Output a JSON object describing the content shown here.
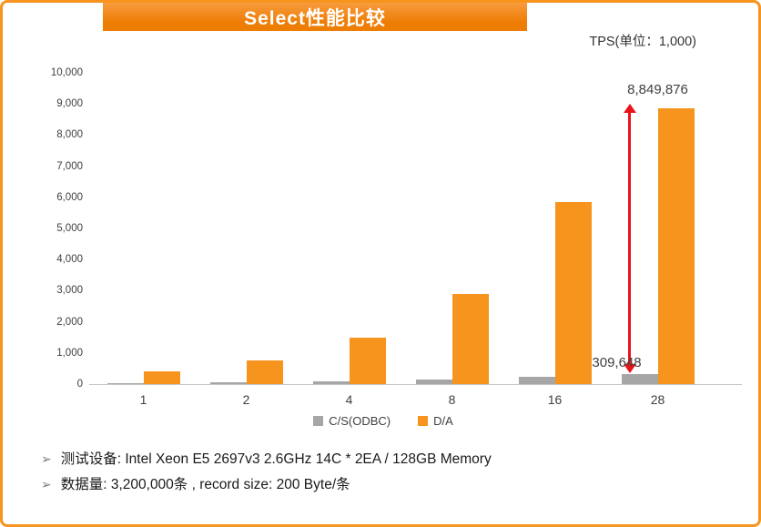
{
  "header": {
    "title": "Select性能比较"
  },
  "chart": {
    "unit_label": "TPS(单位：1,000)"
  },
  "colors": {
    "accent_orange": "#f7941d",
    "banner_orange": "#ee7d04",
    "bar_gray": "#a6a6a6",
    "arrow_red": "#e8131b"
  },
  "chart_data": {
    "type": "bar",
    "title": "Select性能比较",
    "unit": "TPS(单位：1,000)",
    "categories": [
      "1",
      "2",
      "4",
      "8",
      "16",
      "28"
    ],
    "series": [
      {
        "name": "C/S(ODBC)",
        "color": "#a6a6a6",
        "values": [
          15,
          45,
          80,
          150,
          240,
          310
        ]
      },
      {
        "name": "D/A",
        "color": "#f7941d",
        "values": [
          400,
          750,
          1500,
          2900,
          5850,
          8850
        ]
      }
    ],
    "ylim": [
      0,
      10000
    ],
    "yticks": [
      "0",
      "1,000",
      "2,000",
      "3,000",
      "4,000",
      "5,000",
      "6,000",
      "7,000",
      "8,000",
      "9,000",
      "10,000"
    ],
    "grid": false,
    "legend_position": "bottom",
    "annotations": [
      {
        "series": "D/A",
        "category": "28",
        "text": "8,849,876"
      },
      {
        "series": "C/S(ODBC)",
        "category": "28",
        "text": "309,648"
      }
    ],
    "difference_arrow": {
      "category": "28",
      "color": "#e8131b"
    }
  },
  "footnotes": {
    "bullet": "➢",
    "items": [
      {
        "text": "测试设备:  Intel Xeon E5 2697v3 2.6GHz 14C * 2EA / 128GB Memory"
      },
      {
        "text": "数据量: 3,200,000条 , record size:  200 Byte/条"
      }
    ]
  }
}
